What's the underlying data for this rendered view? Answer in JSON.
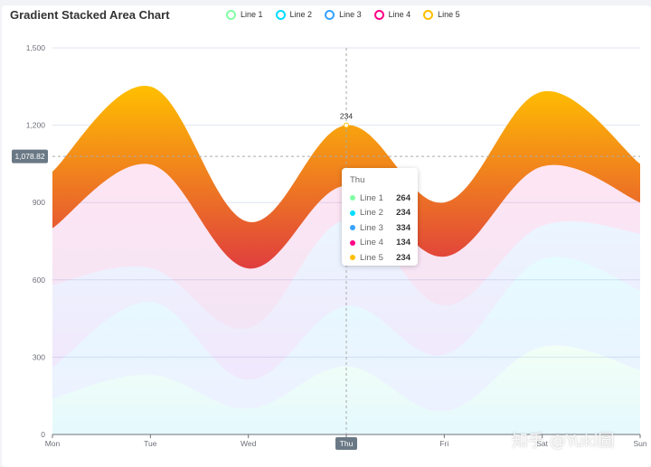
{
  "chart_data": {
    "type": "area",
    "stacked": true,
    "smooth": true,
    "title": "Gradient Stacked Area Chart",
    "categories": [
      "Mon",
      "Tue",
      "Wed",
      "Thu",
      "Fri",
      "Sat",
      "Sun"
    ],
    "ylim": [
      0,
      1500
    ],
    "yticks": [
      0,
      300,
      600,
      900,
      1200,
      1500
    ],
    "y_tick_labels": [
      "0",
      "300",
      "600",
      "900",
      "1,200",
      "1,500"
    ],
    "series": [
      {
        "name": "Line 1",
        "values": [
          140,
          232,
          101,
          264,
          90,
          340,
          250
        ],
        "color": "#80FFA5",
        "gradient": [
          "#80FFA5",
          "#01BFEC"
        ]
      },
      {
        "name": "Line 2",
        "values": [
          120,
          282,
          111,
          234,
          220,
          340,
          310
        ],
        "color": "#00DDFF",
        "gradient": [
          "#00DDFF",
          "#4D77FF"
        ]
      },
      {
        "name": "Line 3",
        "values": [
          320,
          132,
          201,
          334,
          190,
          130,
          220
        ],
        "color": "#37A2FF",
        "gradient": [
          "#37A2FF",
          "#7415DB"
        ]
      },
      {
        "name": "Line 4",
        "values": [
          220,
          402,
          231,
          134,
          190,
          230,
          120
        ],
        "color": "#FF0087",
        "gradient": [
          "#FF0087",
          "#87009D"
        ]
      },
      {
        "name": "Line 5",
        "values": [
          220,
          302,
          181,
          234,
          210,
          290,
          150
        ],
        "color": "#FFBF00",
        "gradient": [
          "#FFBF00",
          "#E03E3E"
        ]
      }
    ],
    "highlight": {
      "category": "Thu",
      "label": "234",
      "pointer_value": "1,078.82"
    }
  },
  "tooltip": {
    "title": "Thu",
    "rows": [
      {
        "name": "Line 1",
        "value": "264",
        "color": "#80FFA5"
      },
      {
        "name": "Line 2",
        "value": "234",
        "color": "#00DDFF"
      },
      {
        "name": "Line 3",
        "value": "334",
        "color": "#37A2FF"
      },
      {
        "name": "Line 4",
        "value": "134",
        "color": "#FF0087"
      },
      {
        "name": "Line 5",
        "value": "234",
        "color": "#FFBF00"
      }
    ]
  },
  "watermark": "知乎 @Yuki圆"
}
